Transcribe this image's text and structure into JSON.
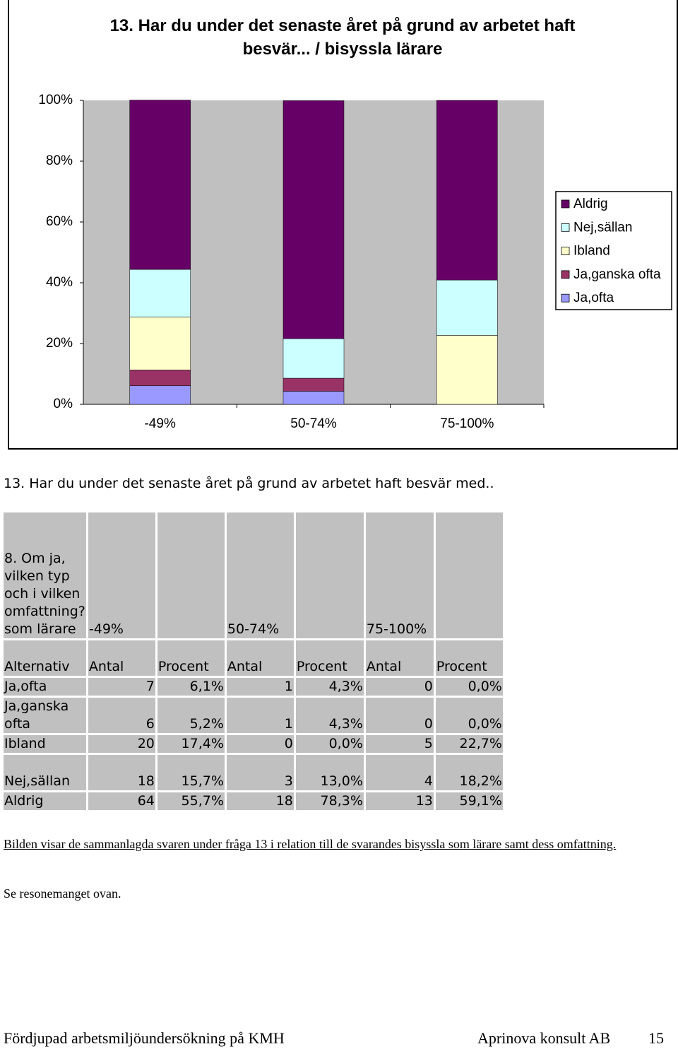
{
  "chart_data": {
    "type": "stacked-bar",
    "title": "13. Har du under det senaste året på grund av arbetet haft besvär... / bisyssla lärare",
    "categories": [
      "-49%",
      "50-74%",
      "75-100%"
    ],
    "series": [
      {
        "name": "Ja,ofta",
        "color": "#9999ff",
        "values": [
          6.1,
          4.3,
          0
        ]
      },
      {
        "name": "Ja,ganska ofta",
        "color": "#993366",
        "values": [
          5.2,
          4.3,
          0
        ]
      },
      {
        "name": "Ibland",
        "color": "#ffffcc",
        "values": [
          17.4,
          0,
          22.7
        ]
      },
      {
        "name": "Nej,sällan",
        "color": "#ccffff",
        "values": [
          15.7,
          13.0,
          18.2
        ]
      },
      {
        "name": "Aldrig",
        "color": "#660066",
        "values": [
          55.7,
          78.3,
          59.1
        ]
      }
    ],
    "ylim": [
      0,
      100
    ],
    "yticks": [
      {
        "value": 0,
        "label": "0%"
      },
      {
        "value": 20,
        "label": "20%"
      },
      {
        "value": 40,
        "label": "40%"
      },
      {
        "value": 60,
        "label": "60%"
      },
      {
        "value": 80,
        "label": "80%"
      },
      {
        "value": 100,
        "label": "100%"
      }
    ],
    "legend": "right"
  },
  "table": {
    "title": "13. Har du under det senaste året på grund av arbetet haft besvär med..",
    "header": {
      "label": "8. Om ja, vilken typ och i vilken omfattning? som lärare",
      "groups": [
        "-49%",
        "50-74%",
        "75-100%"
      ]
    },
    "columns": [
      "Alternativ",
      "Antal",
      "Procent",
      "Antal",
      "Procent",
      "Antal",
      "Procent"
    ],
    "rows": [
      [
        "Ja,ofta",
        7,
        "6,1%",
        1,
        "4,3%",
        0,
        "0,0%"
      ],
      [
        "Ja,ganska ofta",
        6,
        "5,2%",
        1,
        "4,3%",
        0,
        "0,0%"
      ],
      [
        "Ibland",
        20,
        "17,4%",
        0,
        "0,0%",
        5,
        "22,7%"
      ],
      [
        "Nej,sällan",
        18,
        "15,7%",
        3,
        "13,0%",
        4,
        "18,2%"
      ],
      [
        "Aldrig",
        64,
        "55,7%",
        18,
        "78,3%",
        13,
        "59,1%"
      ]
    ]
  },
  "caption": "Bilden visar de sammanlagda svaren under fråga 13 i relation till de svarandes bisyssla som lärare samt dess omfattning.",
  "note": "Se resonemanget ovan.",
  "footer": {
    "left": "Fördjupad arbetsmiljöundersökning på KMH",
    "right": "Aprinova konsult AB",
    "page": "15"
  }
}
